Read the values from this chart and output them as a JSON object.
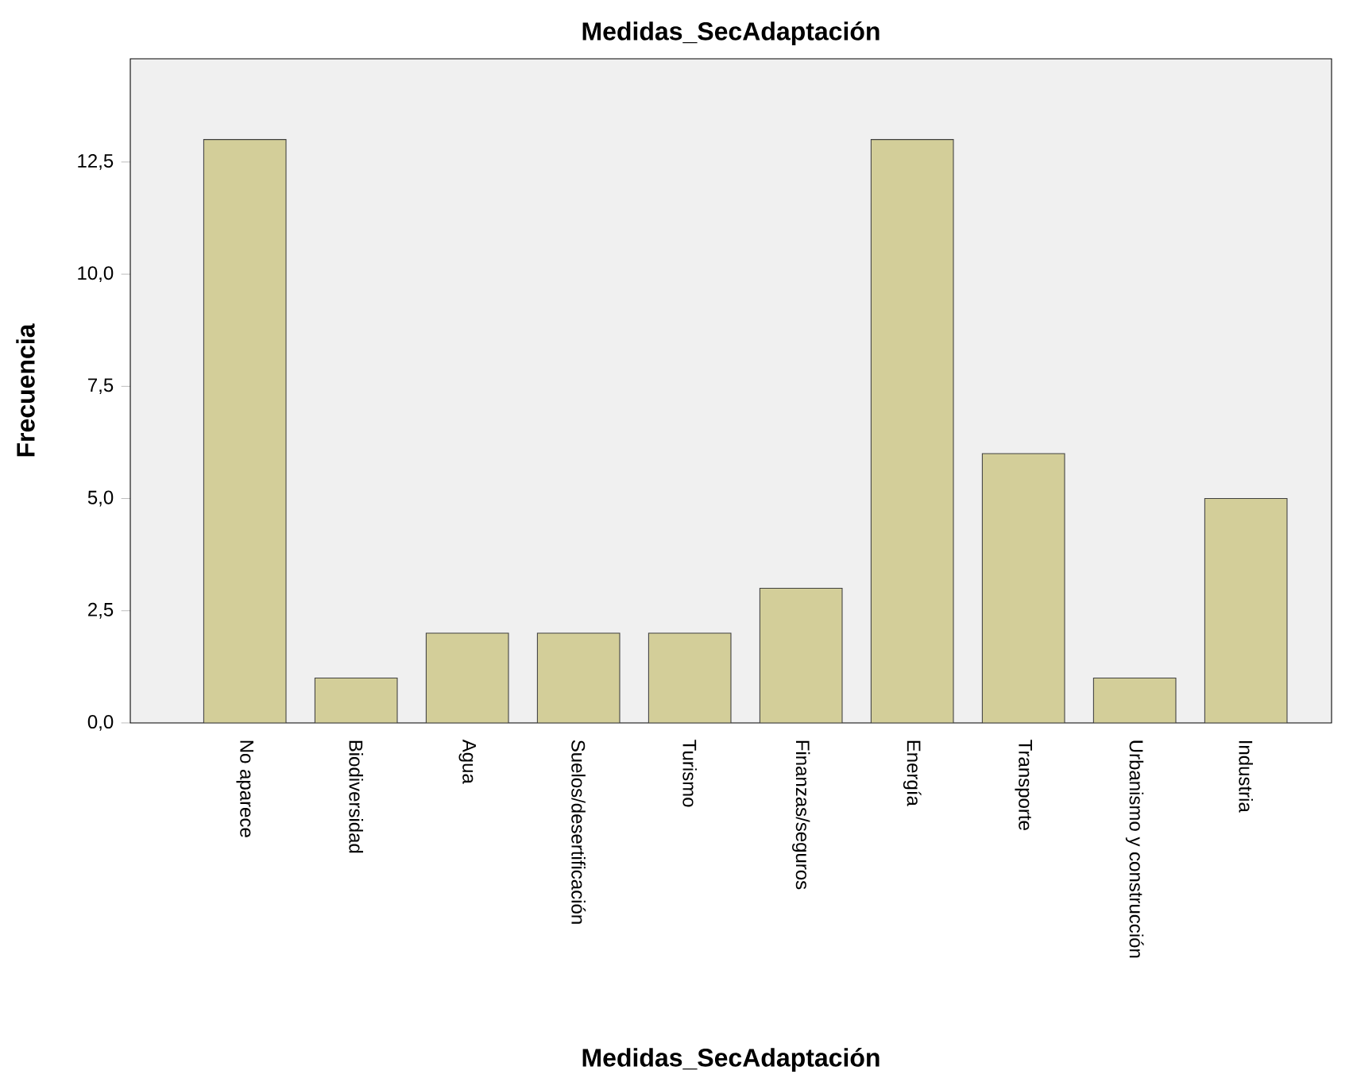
{
  "chart_data": {
    "type": "bar",
    "title": "Medidas_SecAdaptación",
    "xlabel": "Medidas_SecAdaptación",
    "ylabel": "Frecuencia",
    "categories": [
      "No aparece",
      "Biodiversidad",
      "Agua",
      "Suelos/desertificación",
      "Turismo",
      "Finanzas/seguros",
      "Energía",
      "Transporte",
      "Urbanismo y construcción",
      "Industria"
    ],
    "values": [
      13,
      1,
      2,
      2,
      2,
      3,
      13,
      6,
      1,
      5
    ],
    "color": "#d3ce99",
    "ylim": [
      0,
      14.8
    ],
    "yticks": [
      {
        "value": 0,
        "label": "0,0"
      },
      {
        "value": 2.5,
        "label": "2,5"
      },
      {
        "value": 5,
        "label": "5,0"
      },
      {
        "value": 7.5,
        "label": "7,5"
      },
      {
        "value": 10,
        "label": "10,0"
      },
      {
        "value": 12.5,
        "label": "12,5"
      }
    ]
  }
}
